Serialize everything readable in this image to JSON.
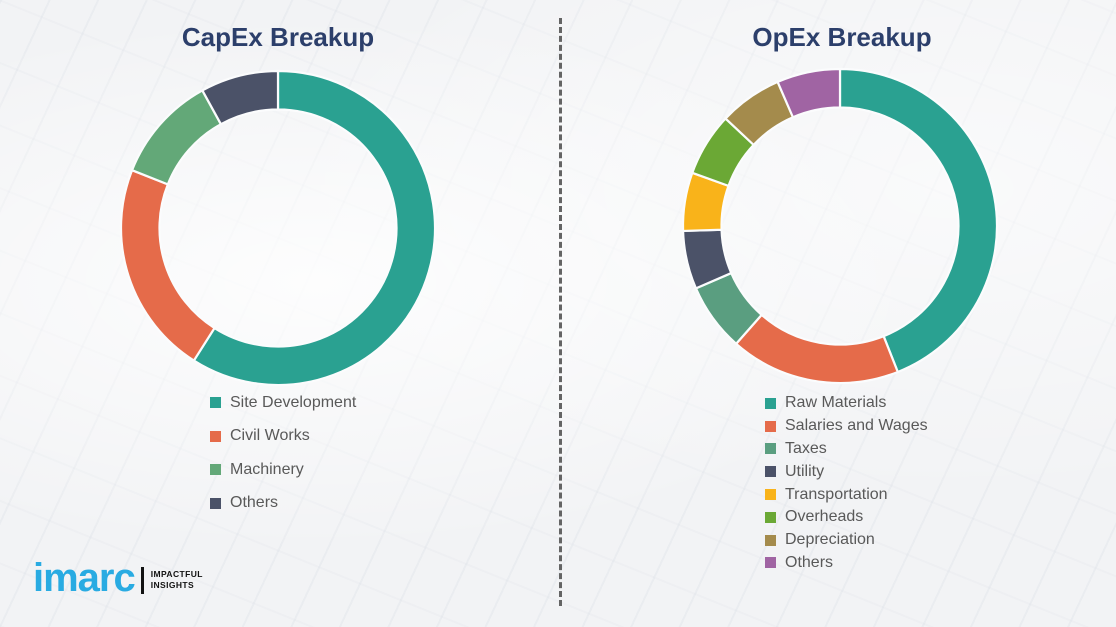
{
  "page": {
    "background_color": "#f2f3f5"
  },
  "divider": {
    "style": "dashed-vertical",
    "color": "#646464"
  },
  "legend_text_color": "#595959",
  "logo": {
    "brand": "imarc",
    "brand_color": "#29abe2",
    "tagline": [
      "IMPACTFUL",
      "INSIGHTS"
    ],
    "tagline_color": "#121212"
  },
  "chart_data": [
    {
      "type": "pie",
      "subtype": "donut",
      "title": "CapEx Breakup",
      "title_color": "#2c3f6b",
      "legend_position": "bottom",
      "start_angle_deg": 0,
      "direction": "clockwise",
      "labels": [
        "Site Development",
        "Civil Works",
        "Machinery",
        "Others"
      ],
      "values": [
        59,
        22,
        11,
        8
      ],
      "unit": "percent",
      "colors": [
        "#2aa191",
        "#e56b4a",
        "#63a878",
        "#4b5268"
      ]
    },
    {
      "type": "pie",
      "subtype": "donut",
      "title": "OpEx Breakup",
      "title_color": "#2c3f6b",
      "legend_position": "bottom",
      "start_angle_deg": 0,
      "direction": "clockwise",
      "labels": [
        "Raw Materials",
        "Salaries and Wages",
        "Taxes",
        "Utility",
        "Transportation",
        "Overheads",
        "Depreciation",
        "Others"
      ],
      "values": [
        44,
        17.5,
        7,
        6,
        6,
        6.5,
        6.5,
        6.5
      ],
      "unit": "percent",
      "colors": [
        "#2aa191",
        "#e56b4a",
        "#5a9e80",
        "#4b5268",
        "#f9b31a",
        "#6ba835",
        "#a48b4c",
        "#a064a3"
      ]
    }
  ]
}
